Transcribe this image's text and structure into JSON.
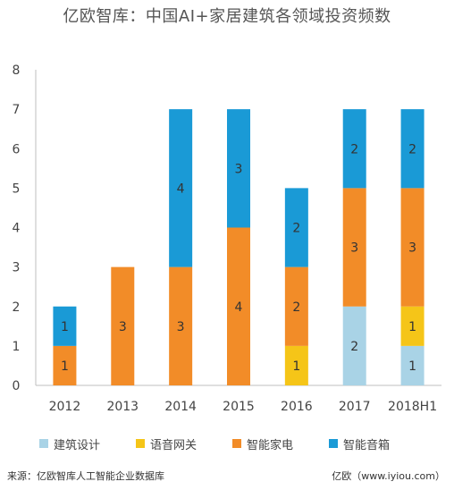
{
  "title": "亿欧智库：中国AI+家居建筑各领域投资频数",
  "source": "来源：亿欧智库人工智能企业数据库",
  "site": "亿欧（www.iyiou.com）",
  "chart_data": {
    "type": "bar",
    "stacked": true,
    "categories": [
      "2012",
      "2013",
      "2014",
      "2015",
      "2016",
      "2017",
      "2018H1"
    ],
    "series": [
      {
        "name": "建筑设计",
        "color": "#a9d3e6",
        "values": [
          0,
          0,
          0,
          0,
          0,
          2,
          1
        ]
      },
      {
        "name": "语音网关",
        "color": "#f5c518",
        "values": [
          0,
          0,
          0,
          0,
          1,
          0,
          1
        ]
      },
      {
        "name": "智能家电",
        "color": "#f28c28",
        "values": [
          1,
          3,
          3,
          4,
          2,
          3,
          3
        ]
      },
      {
        "name": "智能音箱",
        "color": "#1a9ad6",
        "values": [
          1,
          0,
          4,
          3,
          2,
          2,
          2
        ]
      }
    ],
    "yticks": [
      "0",
      "1",
      "2",
      "3",
      "4",
      "5",
      "6",
      "7",
      "8"
    ],
    "ylim": [
      0,
      8
    ],
    "grid": false,
    "legend": "bottom",
    "data_labels": true
  }
}
